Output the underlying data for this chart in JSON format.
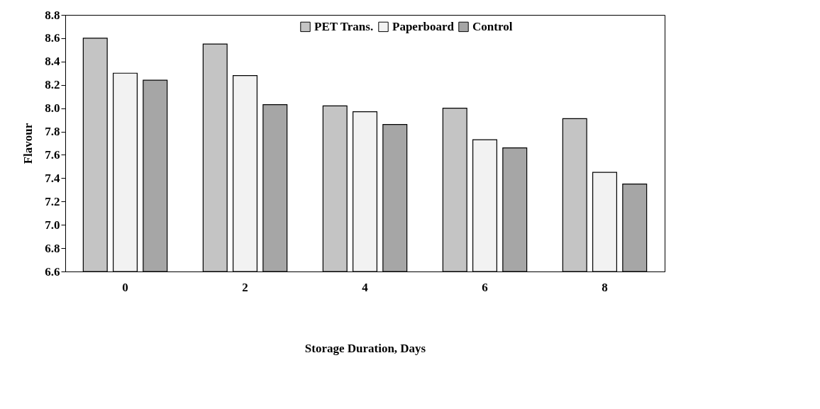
{
  "chart_data": {
    "type": "bar",
    "xlabel": "Storage Duration, Days",
    "ylabel": "Flavour",
    "categories": [
      "0",
      "2",
      "4",
      "6",
      "8"
    ],
    "series": [
      {
        "name": "PET Trans.",
        "color": "#c4c4c4",
        "values": [
          8.6,
          8.55,
          8.02,
          8.0,
          7.91
        ]
      },
      {
        "name": "Paperboard",
        "color": "#f2f2f2",
        "values": [
          8.3,
          8.28,
          7.97,
          7.73,
          7.45
        ]
      },
      {
        "name": "Control",
        "color": "#a6a6a6",
        "values": [
          8.24,
          8.03,
          7.86,
          7.66,
          7.35
        ]
      }
    ],
    "ylim": [
      6.6,
      8.8
    ],
    "yticks": [
      6.6,
      6.8,
      {
        "value": 7.0,
        "label": "7.0"
      },
      7.2,
      7.4,
      7.6,
      7.8,
      {
        "value": 8.0,
        "label": "8.0"
      },
      8.2,
      8.4,
      8.6,
      8.8
    ],
    "grid": false,
    "legend": "top"
  }
}
